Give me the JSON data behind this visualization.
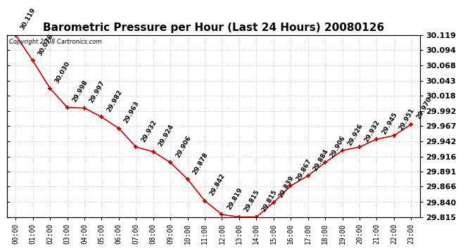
{
  "title": "Barometric Pressure per Hour (Last 24 Hours) 20080126",
  "copyright": "Copyright 2008 Cartronics.com",
  "hours": [
    "00:00",
    "01:00",
    "02:00",
    "03:00",
    "04:00",
    "05:00",
    "06:00",
    "07:00",
    "08:00",
    "09:00",
    "10:00",
    "11:00",
    "12:00",
    "13:00",
    "14:00",
    "15:00",
    "16:00",
    "17:00",
    "18:00",
    "19:00",
    "20:00",
    "21:00",
    "22:00",
    "23:00"
  ],
  "values": [
    30.119,
    30.076,
    30.03,
    29.998,
    29.997,
    29.982,
    29.963,
    29.932,
    29.924,
    29.906,
    29.878,
    29.842,
    29.819,
    29.815,
    29.815,
    29.839,
    29.867,
    29.884,
    29.906,
    29.926,
    29.932,
    29.945,
    29.951,
    29.97
  ],
  "ylim_min": 29.815,
  "ylim_max": 30.119,
  "yticks": [
    29.815,
    29.84,
    29.866,
    29.891,
    29.916,
    29.942,
    29.967,
    29.992,
    30.018,
    30.043,
    30.068,
    30.094,
    30.119
  ],
  "line_color": "#cc0000",
  "marker_color": "#cc0000",
  "bg_color": "#ffffff",
  "grid_color": "#bbbbbb",
  "title_fontsize": 11,
  "label_fontsize": 6.5,
  "tick_fontsize": 7,
  "right_ytick_fontsize": 8
}
